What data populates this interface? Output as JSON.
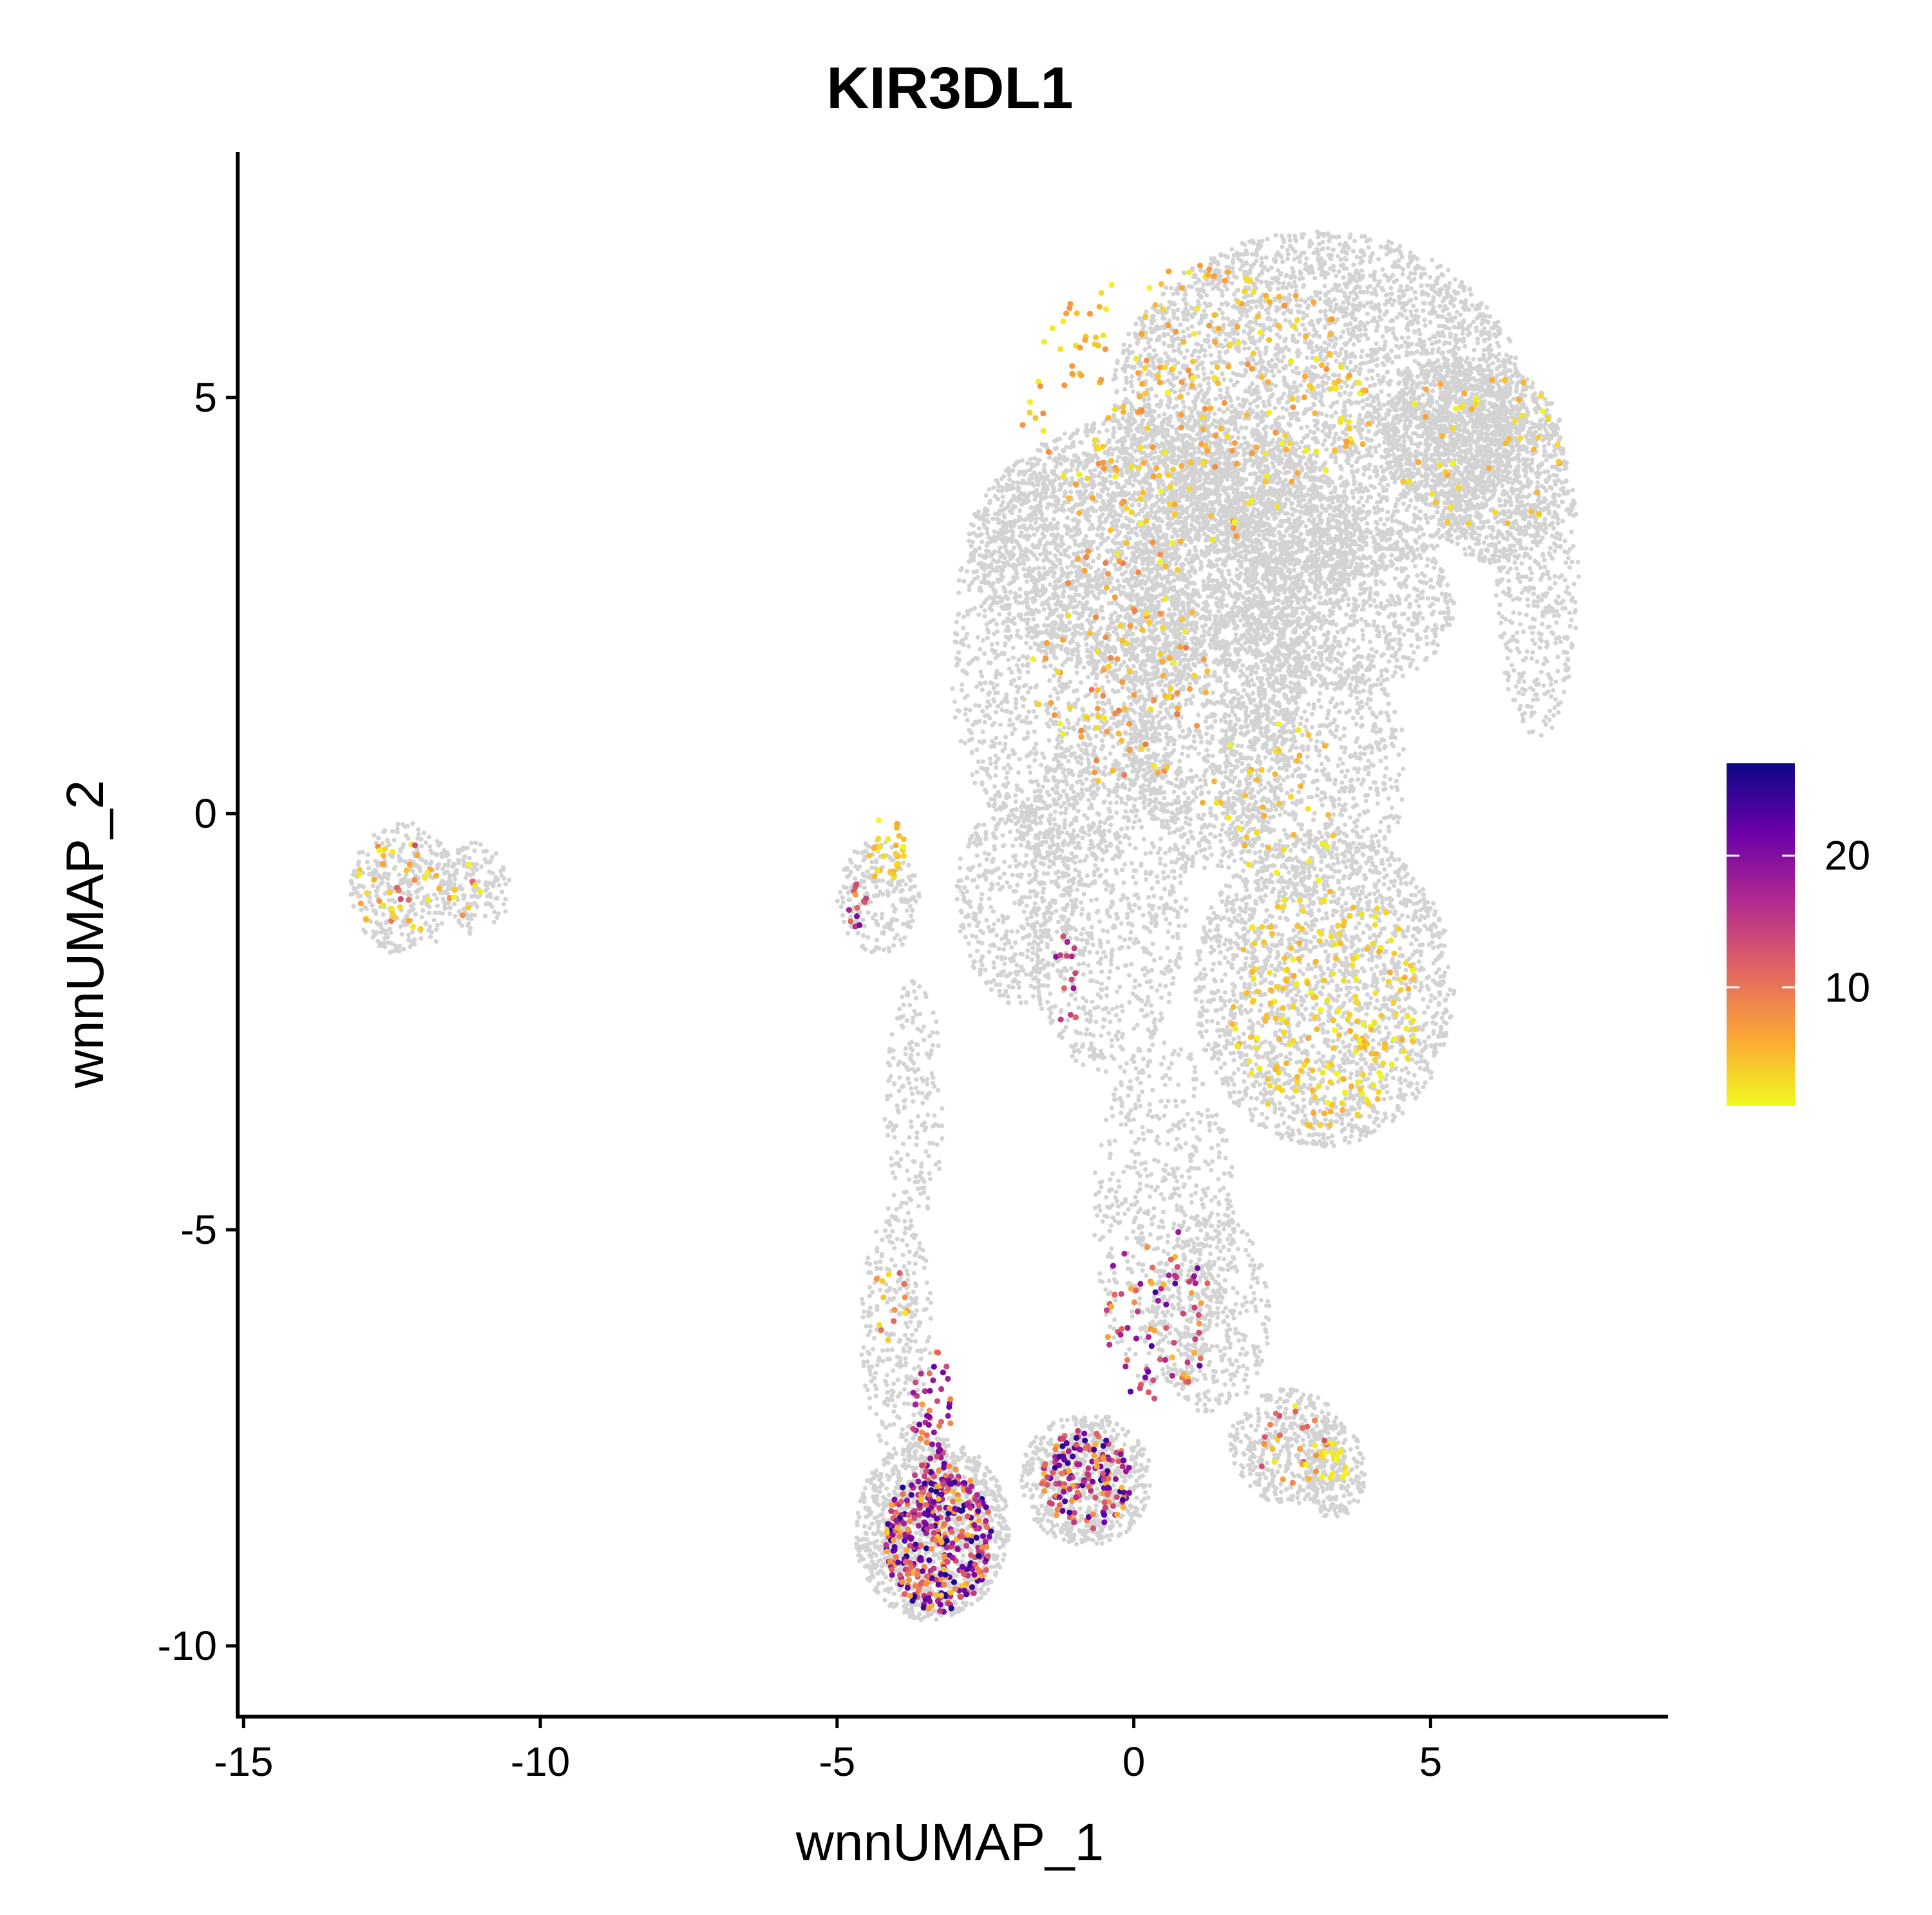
{
  "chart_data": {
    "type": "scatter",
    "title": "KIR3DL1",
    "xlabel": "wnnUMAP_1",
    "ylabel": "wnnUMAP_2",
    "xlim": [
      -15.1,
      9.0
    ],
    "ylim": [
      -10.85,
      7.95
    ],
    "x_ticks": [
      -15,
      -10,
      -5,
      0,
      5
    ],
    "x_tick_labels": [
      "-15",
      "-10",
      "-5",
      "0",
      "5"
    ],
    "y_ticks": [
      -10,
      -5,
      0,
      5
    ],
    "y_tick_labels": [
      "-10",
      "-5",
      "0",
      "5"
    ],
    "grid": false,
    "legend_position": "right",
    "colorbar": {
      "min": 1,
      "max": 27,
      "ticks": [
        10,
        20
      ],
      "tick_labels": [
        "10",
        "20"
      ],
      "colors": [
        "#f0f921",
        "#fca636",
        "#e16462",
        "#b12a90",
        "#6a00a8",
        "#0d0887"
      ]
    },
    "background_color": "#d3d3d3",
    "background_regions": [
      {
        "cx": 3.1,
        "cy": 4.9,
        "rx": 3.5,
        "ry": 2.1,
        "n": 4200
      },
      {
        "cx": 0.5,
        "cy": 3.2,
        "rx": 3.3,
        "ry": 1.6,
        "n": 2600
      },
      {
        "cx": -1.1,
        "cy": 1.9,
        "rx": 2.0,
        "ry": 2.5,
        "n": 1600
      },
      {
        "cx": 1.3,
        "cy": 1.8,
        "rx": 1.5,
        "ry": 2.5,
        "n": 1700
      },
      {
        "cx": 5.3,
        "cy": 4.6,
        "rx": 1.1,
        "ry": 0.9,
        "n": 700
      },
      {
        "cx": 6.1,
        "cy": 4.2,
        "rx": 1.2,
        "ry": 1.2,
        "n": 800
      },
      {
        "cx": 6.8,
        "cy": 2.9,
        "rx": 0.7,
        "ry": 2.0,
        "n": 500
      },
      {
        "cx": 3.6,
        "cy": 2.5,
        "rx": 1.8,
        "ry": 1.0,
        "n": 800
      },
      {
        "cx": 3.0,
        "cy": 0.5,
        "rx": 1.6,
        "ry": 1.6,
        "n": 900
      },
      {
        "cx": 3.2,
        "cy": -2.1,
        "rx": 2.2,
        "ry": 1.9,
        "n": 2000
      },
      {
        "cx": -0.5,
        "cy": -0.9,
        "rx": 1.4,
        "ry": 2.2,
        "n": 900
      },
      {
        "cx": 0.5,
        "cy": -4.8,
        "rx": 1.2,
        "ry": 2.1,
        "n": 600
      },
      {
        "cx": 1.3,
        "cy": -6.0,
        "rx": 1.0,
        "ry": 1.2,
        "n": 400
      },
      {
        "cx": -0.8,
        "cy": -8.0,
        "rx": 1.1,
        "ry": 0.8,
        "n": 600
      },
      {
        "cx": -3.4,
        "cy": -8.6,
        "rx": 1.3,
        "ry": 1.1,
        "n": 1100
      },
      {
        "cx": -4.0,
        "cy": -6.2,
        "rx": 0.6,
        "ry": 1.5,
        "n": 300
      },
      {
        "cx": -3.7,
        "cy": -3.5,
        "rx": 0.5,
        "ry": 1.5,
        "n": 200
      },
      {
        "cx": -4.3,
        "cy": -1.0,
        "rx": 0.7,
        "ry": 0.7,
        "n": 220
      },
      {
        "cx": -2.0,
        "cy": -1.0,
        "rx": 1.0,
        "ry": 1.3,
        "n": 450
      },
      {
        "cx": 2.6,
        "cy": -7.6,
        "rx": 1.0,
        "ry": 0.7,
        "n": 400
      },
      {
        "cx": 3.4,
        "cy": -7.9,
        "rx": 0.5,
        "ry": 0.6,
        "n": 180
      },
      {
        "cx": -12.3,
        "cy": -0.9,
        "rx": 0.9,
        "ry": 0.8,
        "n": 350
      },
      {
        "cx": -11.1,
        "cy": -0.9,
        "rx": 0.6,
        "ry": 0.55,
        "n": 160
      }
    ],
    "expression_regions": [
      {
        "cx": -3.3,
        "cy": -8.7,
        "rx": 0.9,
        "ry": 0.9,
        "n": 420,
        "expr_min": 4,
        "expr_max": 27
      },
      {
        "cx": -3.4,
        "cy": -7.2,
        "rx": 0.35,
        "ry": 0.8,
        "n": 50,
        "expr_min": 5,
        "expr_max": 22
      },
      {
        "cx": -0.8,
        "cy": -8.0,
        "rx": 0.75,
        "ry": 0.6,
        "n": 170,
        "expr_min": 5,
        "expr_max": 26
      },
      {
        "cx": 0.4,
        "cy": -6.0,
        "rx": 0.9,
        "ry": 1.1,
        "n": 80,
        "expr_min": 5,
        "expr_max": 24
      },
      {
        "cx": -1.2,
        "cy": -2.0,
        "rx": 0.4,
        "ry": 0.6,
        "n": 14,
        "expr_min": 10,
        "expr_max": 20
      },
      {
        "cx": -4.7,
        "cy": -1.1,
        "rx": 0.2,
        "ry": 0.3,
        "n": 14,
        "expr_min": 3,
        "expr_max": 26
      },
      {
        "cx": -4.2,
        "cy": -0.4,
        "rx": 0.35,
        "ry": 0.45,
        "n": 30,
        "expr_min": 1,
        "expr_max": 6
      },
      {
        "cx": 3.2,
        "cy": -2.3,
        "rx": 1.6,
        "ry": 1.5,
        "n": 220,
        "expr_min": 1,
        "expr_max": 6
      },
      {
        "cx": 1.0,
        "cy": 4.9,
        "rx": 3.0,
        "ry": 1.7,
        "n": 260,
        "expr_min": 1,
        "expr_max": 8
      },
      {
        "cx": 5.8,
        "cy": 4.3,
        "rx": 1.4,
        "ry": 1.1,
        "n": 50,
        "expr_min": 1,
        "expr_max": 7
      },
      {
        "cx": -0.2,
        "cy": 1.8,
        "rx": 1.5,
        "ry": 1.5,
        "n": 110,
        "expr_min": 1,
        "expr_max": 10
      },
      {
        "cx": -12.4,
        "cy": -0.9,
        "rx": 0.7,
        "ry": 0.6,
        "n": 40,
        "expr_min": 1,
        "expr_max": 14
      },
      {
        "cx": -11.2,
        "cy": -0.9,
        "rx": 0.4,
        "ry": 0.35,
        "n": 10,
        "expr_min": 1,
        "expr_max": 12
      },
      {
        "cx": 2.6,
        "cy": -7.6,
        "rx": 0.7,
        "ry": 0.5,
        "n": 30,
        "expr_min": 1,
        "expr_max": 14
      },
      {
        "cx": 3.3,
        "cy": -7.8,
        "rx": 0.3,
        "ry": 0.4,
        "n": 18,
        "expr_min": 1,
        "expr_max": 3
      },
      {
        "cx": -4.1,
        "cy": -5.9,
        "rx": 0.4,
        "ry": 0.6,
        "n": 14,
        "expr_min": 2,
        "expr_max": 12
      },
      {
        "cx": 2.3,
        "cy": 0.2,
        "rx": 1.2,
        "ry": 1.0,
        "n": 40,
        "expr_min": 1,
        "expr_max": 6
      }
    ]
  }
}
